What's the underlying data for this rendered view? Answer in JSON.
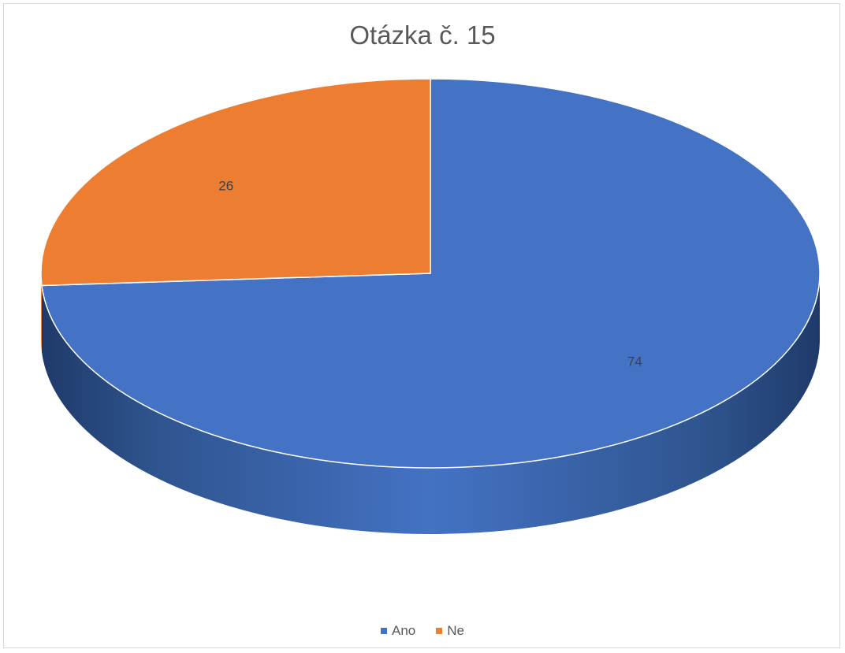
{
  "chart_data": {
    "type": "pie",
    "title": "Otázka č. 15",
    "slices": [
      {
        "label": "Ano",
        "value": 74,
        "color": "#4472c4"
      },
      {
        "label": "Ne",
        "value": 26,
        "color": "#ed7d31"
      }
    ],
    "legend_position": "bottom",
    "style": "3d"
  }
}
